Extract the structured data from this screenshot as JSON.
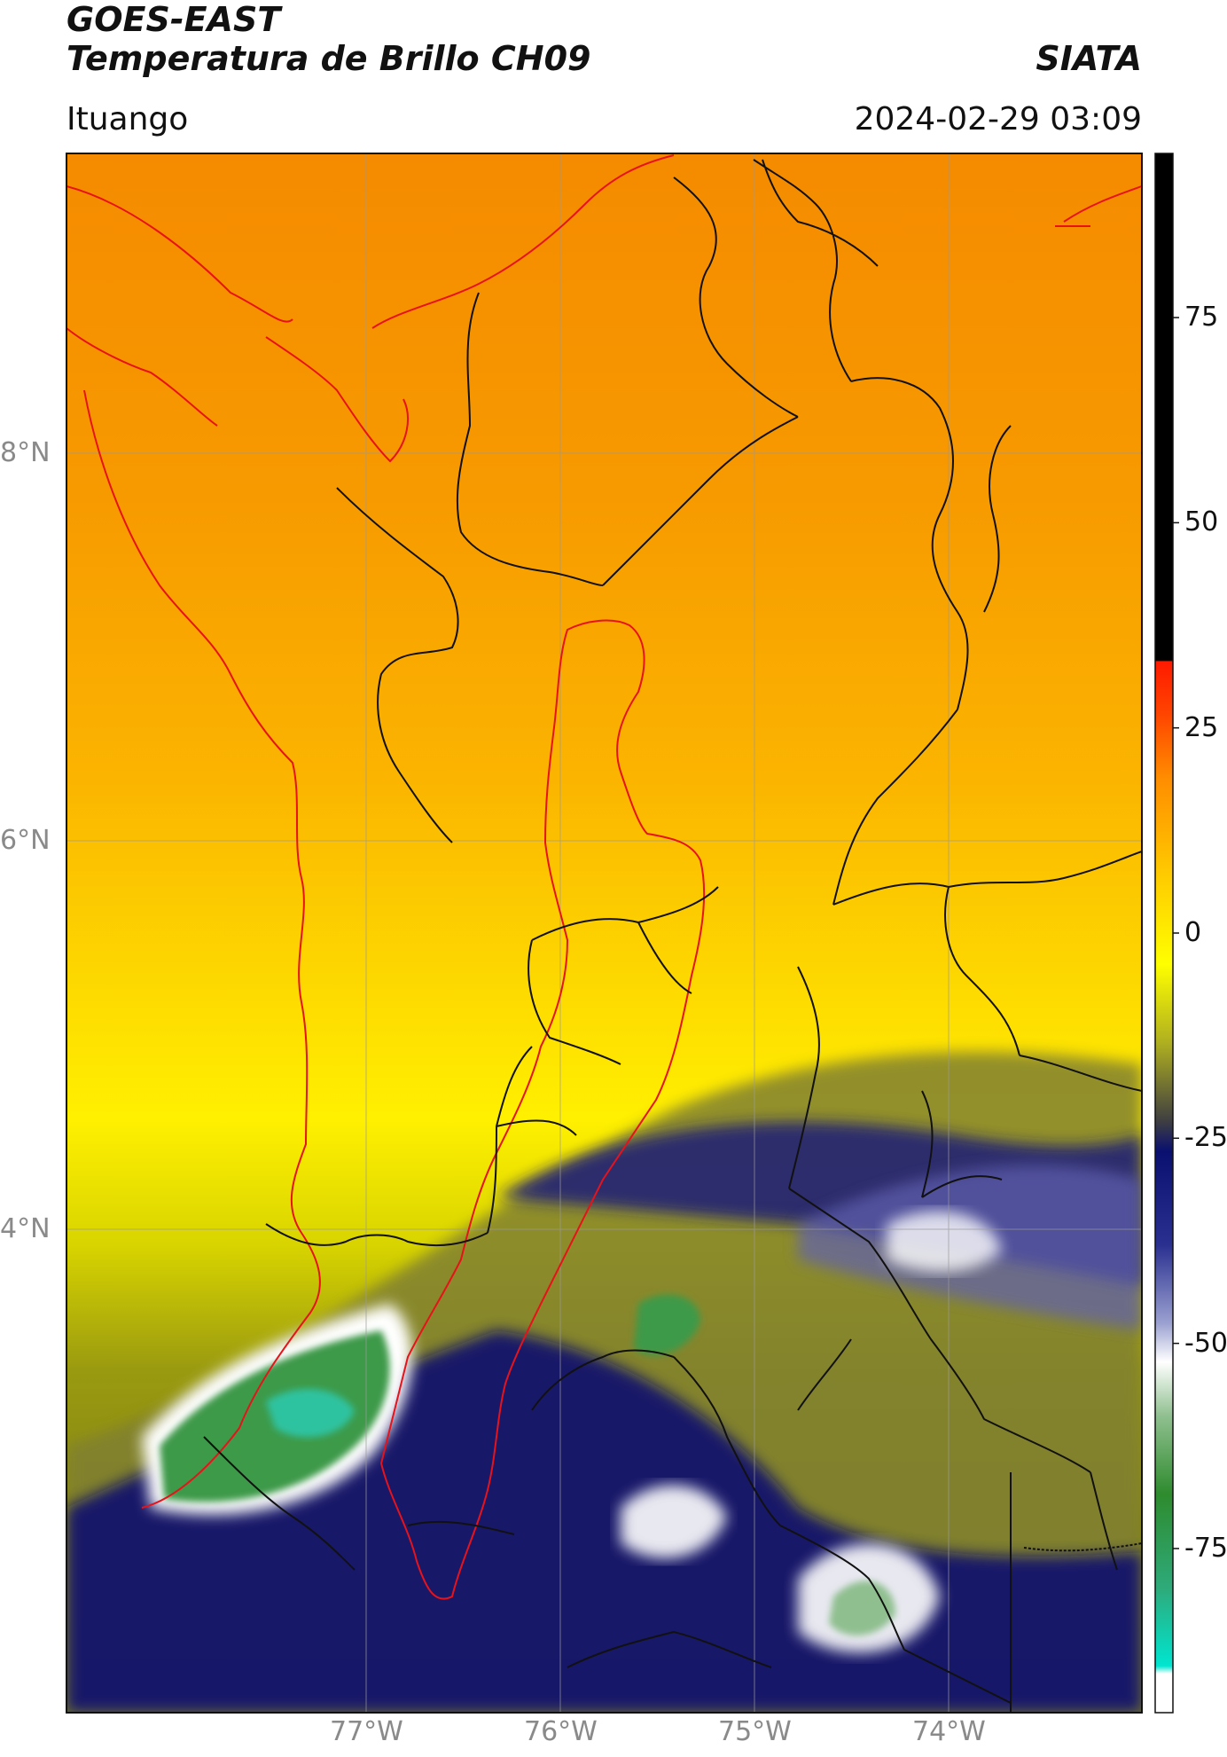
{
  "header": {
    "satellite": "GOES-EAST",
    "product": "Temperatura de Brillo CH09",
    "organization": "SIATA",
    "location": "Ituango",
    "datetime": "2024-02-29 03:09"
  },
  "map": {
    "type": "satellite brightness temperature map",
    "extent_lon": [
      -78.55,
      -72.95
    ],
    "extent_lat": [
      1.9,
      9.55
    ],
    "lat_labels": [
      "8°N",
      "6°N",
      "4°N"
    ],
    "lon_labels": [
      "77°W",
      "76°W",
      "75°W",
      "74°W"
    ],
    "gridlines": true,
    "overlays": [
      "coastline-red",
      "department-borders-black",
      "ituango-region-red"
    ]
  },
  "colorbar": {
    "range": [
      -95,
      95
    ],
    "ticks": [
      "75",
      "50",
      "25",
      "0",
      "-25",
      "-50",
      "-75"
    ],
    "tick_values": [
      75,
      50,
      25,
      0,
      -25,
      -50,
      -75
    ],
    "colors": {
      "black": "#000000",
      "red": "#ff1a00",
      "orange": "#ff9900",
      "yellow": "#ffff00",
      "olive": "#808000",
      "navy": "#0a1070",
      "white": "#ffffff",
      "green": "#2e8b2e",
      "cyan": "#00e5d0"
    }
  }
}
